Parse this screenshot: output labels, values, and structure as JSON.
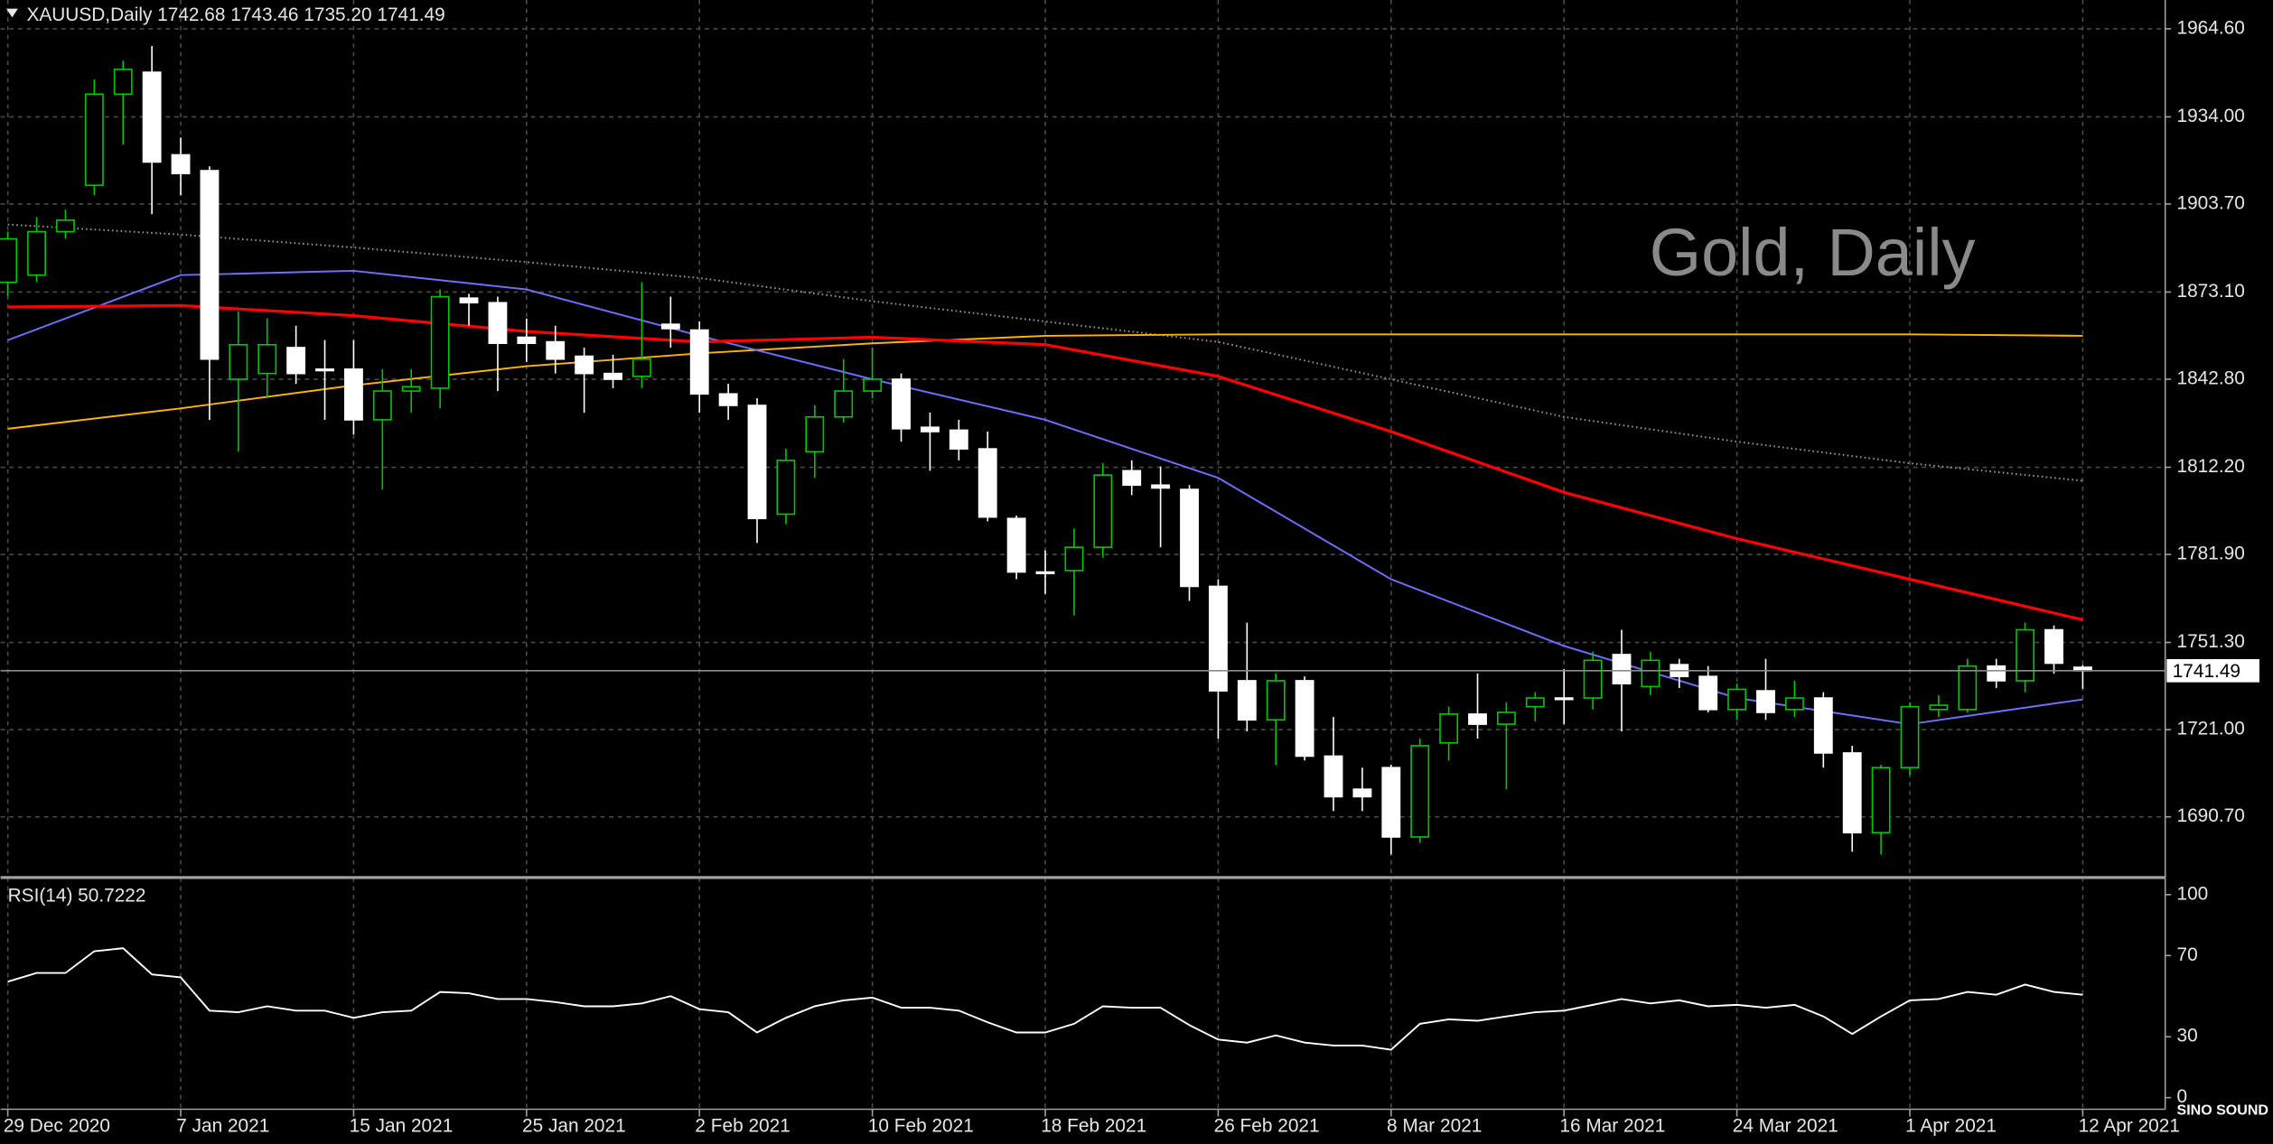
{
  "chart_data": [
    {
      "type": "candlestick",
      "title": "XAUUSD,Daily 1742.68 1743.46 1735.20 1741.49",
      "watermark": "Gold, Daily",
      "categories": [
        "29 Dec 2020",
        null,
        null,
        null,
        null,
        null,
        "7 Jan 2021",
        null,
        null,
        null,
        null,
        null,
        "15 Jan 2021",
        null,
        null,
        null,
        null,
        null,
        "25 Jan 2021",
        null,
        null,
        null,
        null,
        null,
        "2 Feb 2021",
        null,
        null,
        null,
        null,
        null,
        "10 Feb 2021",
        null,
        null,
        null,
        null,
        null,
        "18 Feb 2021",
        null,
        null,
        null,
        null,
        null,
        "26 Feb 2021",
        null,
        null,
        null,
        null,
        null,
        "8 Mar 2021",
        null,
        null,
        null,
        null,
        null,
        "16 Mar 2021",
        null,
        null,
        null,
        null,
        null,
        "24 Mar 2021",
        null,
        null,
        null,
        null,
        null,
        "1 Apr 2021",
        null,
        null,
        null,
        null,
        null,
        "12 Apr 2021"
      ],
      "open": [
        1876.5,
        1879.0,
        1894.1,
        1910.2,
        1941.9,
        1949.5,
        1920.8,
        1915.3,
        1842.8,
        1844.8,
        1853.8,
        1846.3,
        1846.3,
        1828.7,
        1838.7,
        1839.7,
        1871.0,
        1869.4,
        1857.4,
        1855.8,
        1850.8,
        1844.8,
        1843.8,
        1861.9,
        1859.9,
        1837.7,
        1833.7,
        1795.9,
        1817.6,
        1829.7,
        1838.7,
        1842.8,
        1826.1,
        1825.1,
        1818.6,
        1794.4,
        1775.8,
        1776.3,
        1784.4,
        1811.0,
        1806.0,
        1804.5,
        1770.8,
        1738.0,
        1724.4,
        1738.0,
        1711.8,
        1700.3,
        1707.8,
        1683.7,
        1716.4,
        1726.4,
        1722.9,
        1729.0,
        1732.0,
        1732.0,
        1747.1,
        1736.0,
        1743.6,
        1739.5,
        1728.0,
        1734.5,
        1728.0,
        1732.0,
        1712.9,
        1685.2,
        1707.8,
        1728.0,
        1728.0,
        1743.1,
        1738.0,
        1755.7,
        1742.68
      ],
      "high": [
        1894.1,
        1899.1,
        1901.7,
        1947.0,
        1953.5,
        1958.6,
        1926.8,
        1916.8,
        1866.4,
        1863.9,
        1861.4,
        1856.4,
        1856.4,
        1846.3,
        1846.3,
        1874.0,
        1872.5,
        1871.5,
        1863.9,
        1861.4,
        1853.8,
        1851.3,
        1876.5,
        1871.5,
        1862.9,
        1841.2,
        1836.2,
        1818.6,
        1833.7,
        1849.8,
        1853.8,
        1844.8,
        1831.2,
        1828.7,
        1824.6,
        1795.4,
        1783.3,
        1790.9,
        1813.6,
        1814.6,
        1812.5,
        1806.0,
        1773.3,
        1758.2,
        1740.5,
        1739.5,
        1725.4,
        1707.8,
        1708.8,
        1717.9,
        1729.0,
        1740.5,
        1730.5,
        1734.0,
        1742.1,
        1748.1,
        1755.7,
        1748.1,
        1745.6,
        1743.1,
        1737.0,
        1745.6,
        1738.0,
        1734.0,
        1715.4,
        1708.8,
        1730.5,
        1733.0,
        1745.6,
        1745.6,
        1758.2,
        1757.2,
        1743.46
      ],
      "low": [
        1871.5,
        1876.5,
        1891.6,
        1906.7,
        1924.3,
        1900.2,
        1906.7,
        1828.7,
        1817.6,
        1836.2,
        1841.2,
        1828.7,
        1823.6,
        1804.5,
        1831.2,
        1832.7,
        1861.4,
        1838.7,
        1848.8,
        1844.8,
        1831.2,
        1839.7,
        1839.7,
        1853.8,
        1831.2,
        1828.7,
        1785.9,
        1792.4,
        1808.5,
        1827.7,
        1836.2,
        1821.1,
        1811.0,
        1814.6,
        1793.4,
        1773.3,
        1768.2,
        1760.7,
        1780.8,
        1802.5,
        1784.4,
        1765.7,
        1717.9,
        1720.4,
        1708.8,
        1710.3,
        1692.7,
        1692.7,
        1677.6,
        1681.6,
        1710.3,
        1717.9,
        1700.3,
        1723.9,
        1722.9,
        1728.0,
        1720.4,
        1733.0,
        1735.5,
        1727.0,
        1724.4,
        1724.4,
        1725.4,
        1707.8,
        1678.6,
        1677.6,
        1705.3,
        1725.4,
        1727.0,
        1735.5,
        1734.0,
        1740.5,
        1735.2
      ],
      "close": [
        1891.6,
        1894.1,
        1898.1,
        1941.9,
        1950.5,
        1918.3,
        1914.3,
        1849.8,
        1854.8,
        1854.8,
        1844.8,
        1845.8,
        1828.7,
        1838.7,
        1840.2,
        1871.5,
        1869.4,
        1855.3,
        1855.3,
        1849.8,
        1844.8,
        1842.8,
        1849.8,
        1860.4,
        1837.7,
        1833.7,
        1794.4,
        1814.6,
        1829.7,
        1838.7,
        1842.8,
        1825.6,
        1824.6,
        1818.6,
        1794.9,
        1775.8,
        1775.3,
        1784.4,
        1809.5,
        1806.0,
        1805.0,
        1770.8,
        1734.5,
        1724.4,
        1738.0,
        1711.8,
        1697.7,
        1697.7,
        1683.7,
        1715.4,
        1726.4,
        1722.9,
        1727.0,
        1732.0,
        1731.5,
        1745.1,
        1737.0,
        1745.1,
        1739.5,
        1728.0,
        1735.0,
        1727.0,
        1732.0,
        1712.9,
        1685.2,
        1707.8,
        1729.0,
        1729.5,
        1743.1,
        1738.0,
        1755.7,
        1744.1,
        1741.49
      ],
      "up_color": "#00c800",
      "down_color": "#ffffff",
      "overlays": [
        {
          "color": "#999999",
          "line_style": "dotted",
          "x": [
            0,
            6,
            12,
            18,
            24,
            30,
            36,
            42,
            48,
            54,
            60,
            66,
            72
          ],
          "values": [
            1896.6,
            1893.1,
            1888.6,
            1883.5,
            1878.0,
            1869.9,
            1862.9,
            1855.8,
            1842.8,
            1829.7,
            1821.1,
            1813.6,
            1807.5
          ]
        },
        {
          "color": "#ffb400",
          "x": [
            0,
            6,
            12,
            18,
            24,
            30,
            36,
            42,
            48,
            54,
            60,
            66,
            72
          ],
          "values": [
            1825.6,
            1832.7,
            1840.7,
            1847.3,
            1851.8,
            1855.3,
            1857.9,
            1858.4,
            1858.4,
            1858.4,
            1858.4,
            1858.4,
            1857.9
          ]
        },
        {
          "color": "#7070ff",
          "x": [
            0,
            6,
            12,
            18,
            24,
            30,
            36,
            42,
            48,
            54,
            60,
            66,
            72
          ],
          "values": [
            1856.4,
            1879.0,
            1880.5,
            1874.0,
            1857.9,
            1842.8,
            1828.7,
            1808.5,
            1773.3,
            1750.1,
            1732.0,
            1722.9,
            1731.5
          ]
        },
        {
          "color": "#ff0000",
          "x": [
            0,
            6,
            12,
            18,
            24,
            30,
            36,
            42,
            48,
            54,
            60,
            66,
            72
          ],
          "values": [
            1867.9,
            1868.4,
            1864.9,
            1859.4,
            1855.8,
            1857.4,
            1854.8,
            1843.8,
            1824.6,
            1803.5,
            1787.4,
            1773.3,
            1759.2
          ]
        }
      ],
      "last_price": {
        "value": 1741.49,
        "label": "1741.49"
      },
      "ylim": [
        1670.1,
        1972.1
      ],
      "yticks": [
        {
          "value": 1964.6,
          "label": "1964.60"
        },
        {
          "value": 1934.0,
          "label": "1934.00"
        },
        {
          "value": 1903.7,
          "label": "1903.70"
        },
        {
          "value": 1873.1,
          "label": "1873.10"
        },
        {
          "value": 1842.8,
          "label": "1842.80"
        },
        {
          "value": 1812.2,
          "label": "1812.20"
        },
        {
          "value": 1781.9,
          "label": "1781.90"
        },
        {
          "value": 1751.3,
          "label": "1751.30"
        },
        {
          "value": 1721.0,
          "label": "1721.00"
        },
        {
          "value": 1690.7,
          "label": "1690.70"
        }
      ],
      "grid": true
    },
    {
      "type": "line",
      "title": "RSI(14) 50.7222",
      "color": "#ffffff",
      "values": [
        57.1,
        61.4,
        61.4,
        72.1,
        73.6,
        60.7,
        59.3,
        42.9,
        42.1,
        45.0,
        42.9,
        42.9,
        39.3,
        42.1,
        42.9,
        52.1,
        51.4,
        48.6,
        48.6,
        47.1,
        45.0,
        45.0,
        46.4,
        50.0,
        43.6,
        42.1,
        32.1,
        39.3,
        45.0,
        47.9,
        49.3,
        44.3,
        44.3,
        42.9,
        37.1,
        32.1,
        32.1,
        36.4,
        45.0,
        44.3,
        44.3,
        35.7,
        28.6,
        27.1,
        30.7,
        27.1,
        25.7,
        25.7,
        23.6,
        36.4,
        38.6,
        37.9,
        40.0,
        42.1,
        42.9,
        45.7,
        48.6,
        46.4,
        47.9,
        45.0,
        45.7,
        44.3,
        45.7,
        40.0,
        31.4,
        40.0,
        47.9,
        48.6,
        52.1,
        50.7,
        55.7,
        52.1,
        50.7222
      ],
      "ylim": [
        -5,
        107
      ],
      "yticks": [
        100,
        70,
        30,
        0
      ]
    }
  ],
  "logo": "SINO SOUND"
}
